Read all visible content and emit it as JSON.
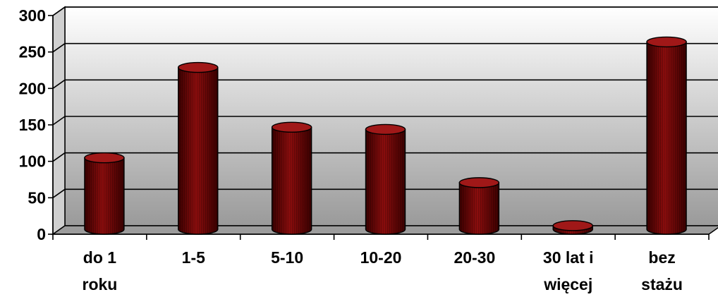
{
  "chart_data": {
    "type": "bar",
    "style": "3d-cylinder",
    "title": "",
    "xlabel": "",
    "ylabel": "",
    "ylim": [
      0,
      300
    ],
    "y_ticks": [
      0,
      50,
      100,
      150,
      200,
      250,
      300
    ],
    "grid": true,
    "categories": [
      [
        "do 1",
        "roku"
      ],
      [
        "1-5"
      ],
      [
        "5-10"
      ],
      [
        "10-20"
      ],
      [
        "20-30"
      ],
      [
        "30 lat i",
        "więcej"
      ],
      [
        "bez",
        "stażu"
      ]
    ],
    "values": [
      98,
      222,
      140,
      137,
      64,
      5,
      257
    ],
    "colors": {
      "bar": "#8b0d0d",
      "bar_dark": "#3a0000",
      "bar_top": "#a01818",
      "wall_top": "#ffffff",
      "wall_bottom": "#9a9a9a"
    }
  }
}
